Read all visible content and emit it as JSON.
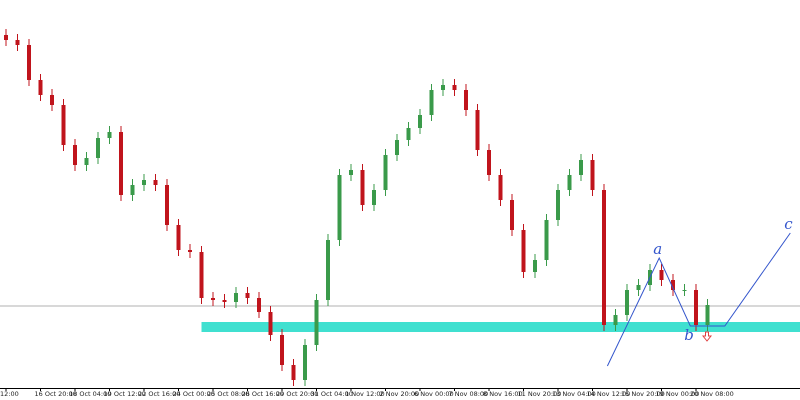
{
  "chart_data": {
    "type": "candlestick",
    "categories": [
      "12:00",
      null,
      null,
      "16 Oct 20:00",
      null,
      null,
      "18 Oct 04:00",
      null,
      null,
      "19 Oct 12:00",
      null,
      null,
      "22 Oct 16:00",
      null,
      null,
      "24 Oct 00:00",
      null,
      null,
      "25 Oct 08:00",
      null,
      null,
      "26 Oct 16:00",
      null,
      null,
      "29 Oct 20:00",
      null,
      null,
      "31 Oct 04:00",
      null,
      null,
      "1 Nov 12:00",
      null,
      null,
      "2 Nov 20:00",
      null,
      null,
      "6 Nov 00:00",
      null,
      null,
      "7 Nov 08:00",
      null,
      null,
      "8 Nov 16:00",
      null,
      null,
      "11 Nov 20:00",
      null,
      null,
      "13 Nov 04:00",
      null,
      null,
      "14 Nov 12:00",
      null,
      null,
      "15 Nov 20:00",
      null,
      null,
      "19 Nov 00:00",
      null,
      null,
      "20 Nov 08:00",
      null
    ],
    "open": [
      355,
      350,
      345,
      310,
      295,
      285,
      245,
      225,
      232,
      252,
      258,
      195,
      205,
      210,
      205,
      165,
      140,
      138,
      92,
      90,
      88,
      97,
      92,
      78,
      55,
      25,
      10,
      45,
      90,
      150,
      215,
      220,
      185,
      200,
      235,
      250,
      262,
      275,
      300,
      305,
      300,
      280,
      240,
      215,
      190,
      160,
      118,
      130,
      170,
      200,
      215,
      230,
      200,
      65,
      75,
      100,
      105,
      120,
      110,
      100,
      100,
      65
    ],
    "high": [
      361,
      356,
      351,
      316,
      301,
      291,
      251,
      238,
      258,
      264,
      264,
      211,
      216,
      216,
      211,
      171,
      146,
      144,
      98,
      96,
      103,
      103,
      98,
      84,
      61,
      31,
      51,
      96,
      156,
      221,
      226,
      226,
      206,
      241,
      256,
      268,
      281,
      306,
      311,
      311,
      306,
      286,
      246,
      221,
      196,
      166,
      136,
      176,
      206,
      221,
      236,
      236,
      206,
      81,
      106,
      111,
      126,
      126,
      116,
      106,
      106,
      91
    ],
    "low": [
      344,
      339,
      304,
      289,
      279,
      239,
      219,
      219,
      226,
      246,
      189,
      189,
      199,
      199,
      159,
      134,
      132,
      86,
      84,
      82,
      82,
      86,
      72,
      49,
      19,
      4,
      4,
      39,
      84,
      144,
      209,
      179,
      179,
      194,
      229,
      244,
      256,
      269,
      294,
      294,
      274,
      234,
      209,
      184,
      154,
      112,
      112,
      124,
      164,
      194,
      209,
      194,
      59,
      59,
      69,
      94,
      99,
      104,
      94,
      94,
      59,
      59
    ],
    "close": [
      350,
      345,
      310,
      295,
      285,
      245,
      225,
      232,
      252,
      258,
      195,
      205,
      210,
      205,
      165,
      140,
      138,
      92,
      90,
      88,
      97,
      92,
      78,
      55,
      25,
      10,
      45,
      90,
      150,
      215,
      220,
      185,
      200,
      235,
      250,
      262,
      275,
      300,
      305,
      300,
      280,
      240,
      215,
      190,
      160,
      118,
      130,
      170,
      200,
      215,
      230,
      200,
      65,
      75,
      100,
      105,
      120,
      110,
      100,
      100,
      65,
      85
    ],
    "up_color": "#3a9a4a",
    "down_color": "#c0141c",
    "hline": 84,
    "zone": {
      "from": 17,
      "low": 58,
      "high": 68,
      "color": "#40e0d0"
    },
    "trendline": {
      "x": [
        52.3,
        56.8,
        59.5,
        62.5,
        68.2
      ],
      "y": [
        24,
        132,
        64,
        64,
        157
      ],
      "color": "#3355cc"
    },
    "annotations": [
      {
        "text": "a",
        "index": 1
      },
      {
        "text": "b",
        "index": 2
      },
      {
        "text": "c",
        "index": 4
      }
    ]
  }
}
